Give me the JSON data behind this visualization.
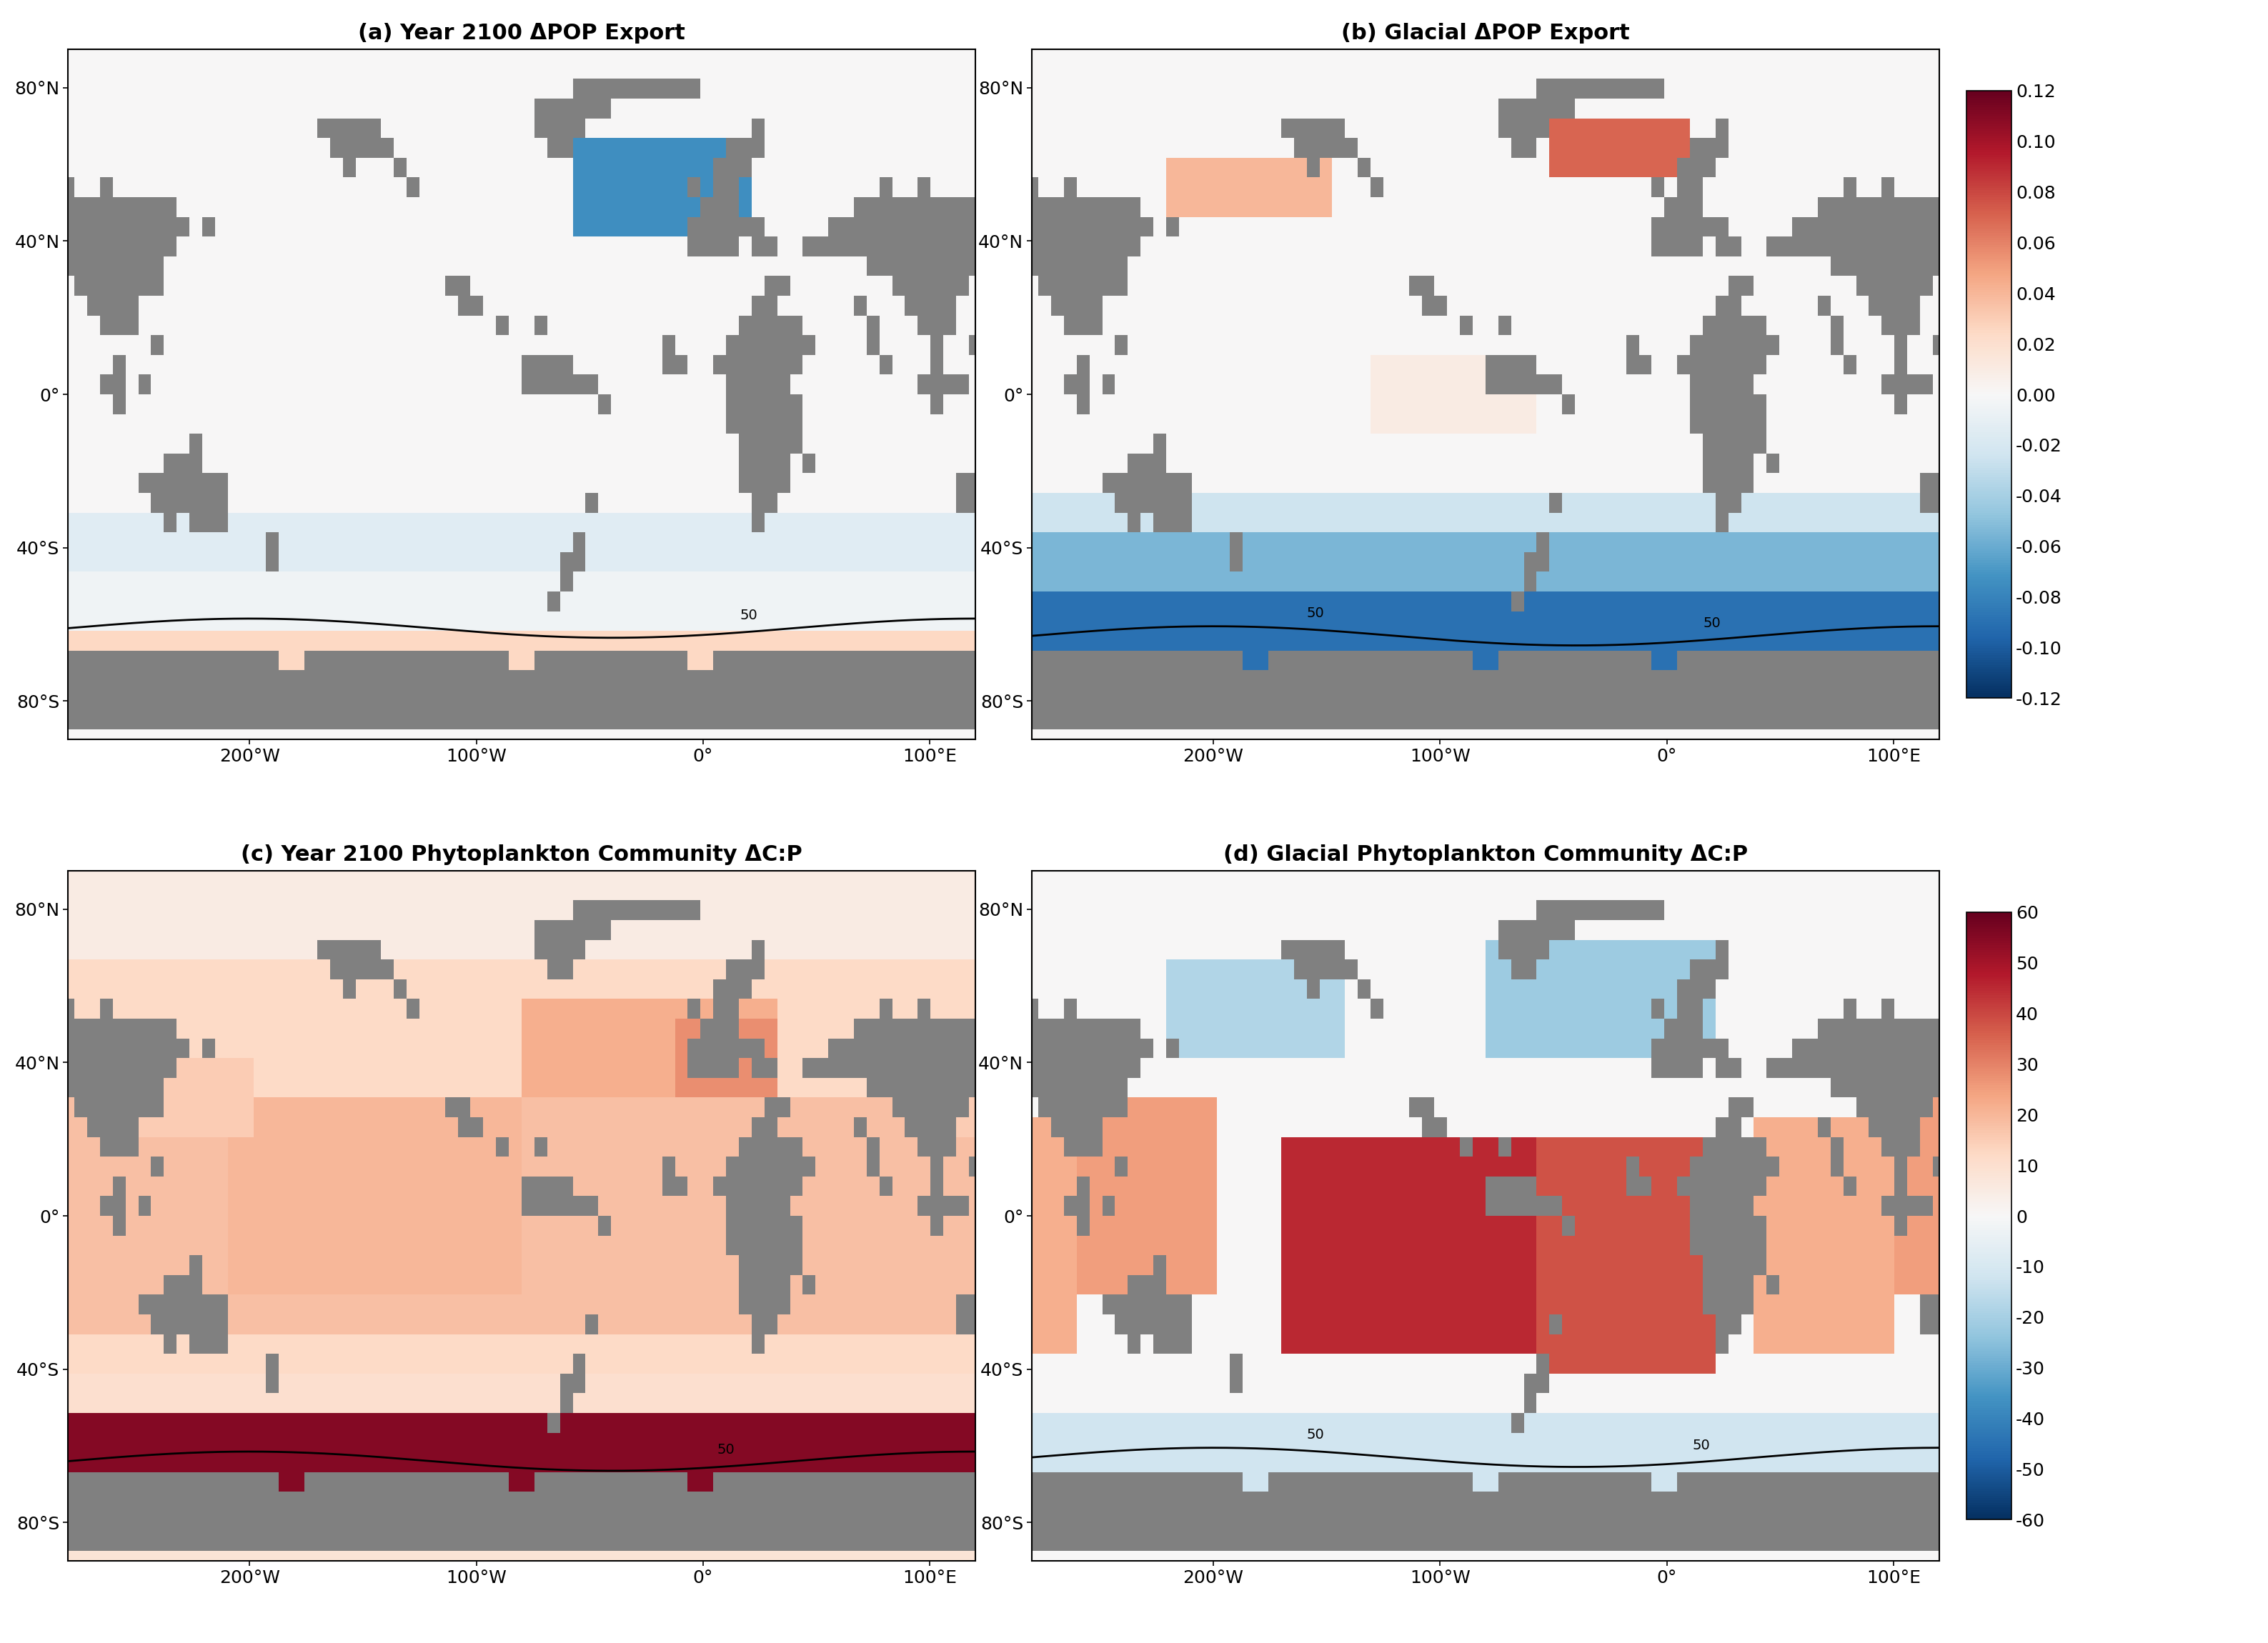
{
  "titles": [
    "(a) Year 2100 ΔPOP Export",
    "(b) Glacial ΔPOP Export",
    "(c) Year 2100 Phytoplankton Community ΔC:P",
    "(d) Glacial Phytoplankton Community ΔC:P"
  ],
  "cbar1_ticks": [
    0.12,
    0.1,
    0.08,
    0.06,
    0.04,
    0.02,
    0.0,
    -0.02,
    -0.04,
    -0.06,
    -0.08,
    -0.1,
    -0.12
  ],
  "cbar1_ticklabels": [
    "0.12",
    "0.10",
    "0.08",
    "0.06",
    "0.04",
    "0.02",
    "0.00",
    "-0.02",
    "-0.04",
    "-0.06",
    "-0.08",
    "-0.10",
    "-0.12"
  ],
  "cbar2_ticks": [
    60,
    50,
    40,
    30,
    20,
    10,
    0,
    -10,
    -20,
    -30,
    -40,
    -50,
    -60
  ],
  "cbar2_ticklabels": [
    "60",
    "50",
    "40",
    "30",
    "20",
    "10",
    "0",
    "-10",
    "-20",
    "-30",
    "-40",
    "-50",
    "-60"
  ],
  "cbar1_vmin": -0.12,
  "cbar1_vmax": 0.12,
  "cbar2_vmin": -60,
  "cbar2_vmax": 60,
  "land_color": "#808080",
  "title_fontsize": 22,
  "tick_fontsize": 18,
  "cbar_tick_fontsize": 18,
  "xtick_lons": [
    -200,
    -100,
    0,
    100
  ],
  "xticklabels": [
    "200°W",
    "100°W",
    "0°",
    "100°E"
  ],
  "ytick_lats": [
    -80,
    -40,
    0,
    40,
    80
  ],
  "yticklabels": [
    "80°S",
    "40°S",
    "0°",
    "40°N",
    "80°N"
  ],
  "lon_min": -280,
  "lon_max": 120,
  "lat_min": -90,
  "lat_max": 90
}
